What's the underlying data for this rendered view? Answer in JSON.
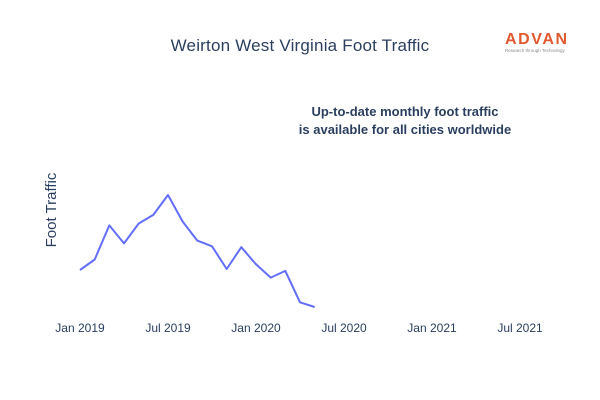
{
  "header": {
    "title": "Weirton West Virginia Foot Traffic"
  },
  "logo": {
    "word": "ADVAN",
    "tagline": "Research through Technology",
    "color": "#e0592f"
  },
  "annotation": {
    "line1": "Up-to-date monthly foot traffic",
    "line2": "is available for all cities worldwide"
  },
  "chart_data": {
    "type": "line",
    "title": "Weirton West Virginia Foot Traffic",
    "xlabel": "",
    "ylabel": "Foot Traffic",
    "grid": false,
    "x_ticks": [
      "Jan 2019",
      "Jul 2019",
      "Jan 2020",
      "Jul 2020",
      "Jan 2021",
      "Jul 2021"
    ],
    "xlim": [
      "2018-12",
      "2021-08"
    ],
    "series": [
      {
        "name": "",
        "color": "#636efa",
        "x": [
          "2019-01",
          "2019-02",
          "2019-03",
          "2019-04",
          "2019-05",
          "2019-06",
          "2019-07",
          "2019-08",
          "2019-09",
          "2019-10",
          "2019-11",
          "2019-12",
          "2020-01",
          "2020-02",
          "2020-03",
          "2020-04",
          "2020-05"
        ],
        "y": [
          39,
          50,
          86,
          67,
          88,
          97,
          118,
          90,
          70,
          64,
          40,
          63,
          45,
          31,
          38,
          5,
          0
        ]
      }
    ]
  }
}
